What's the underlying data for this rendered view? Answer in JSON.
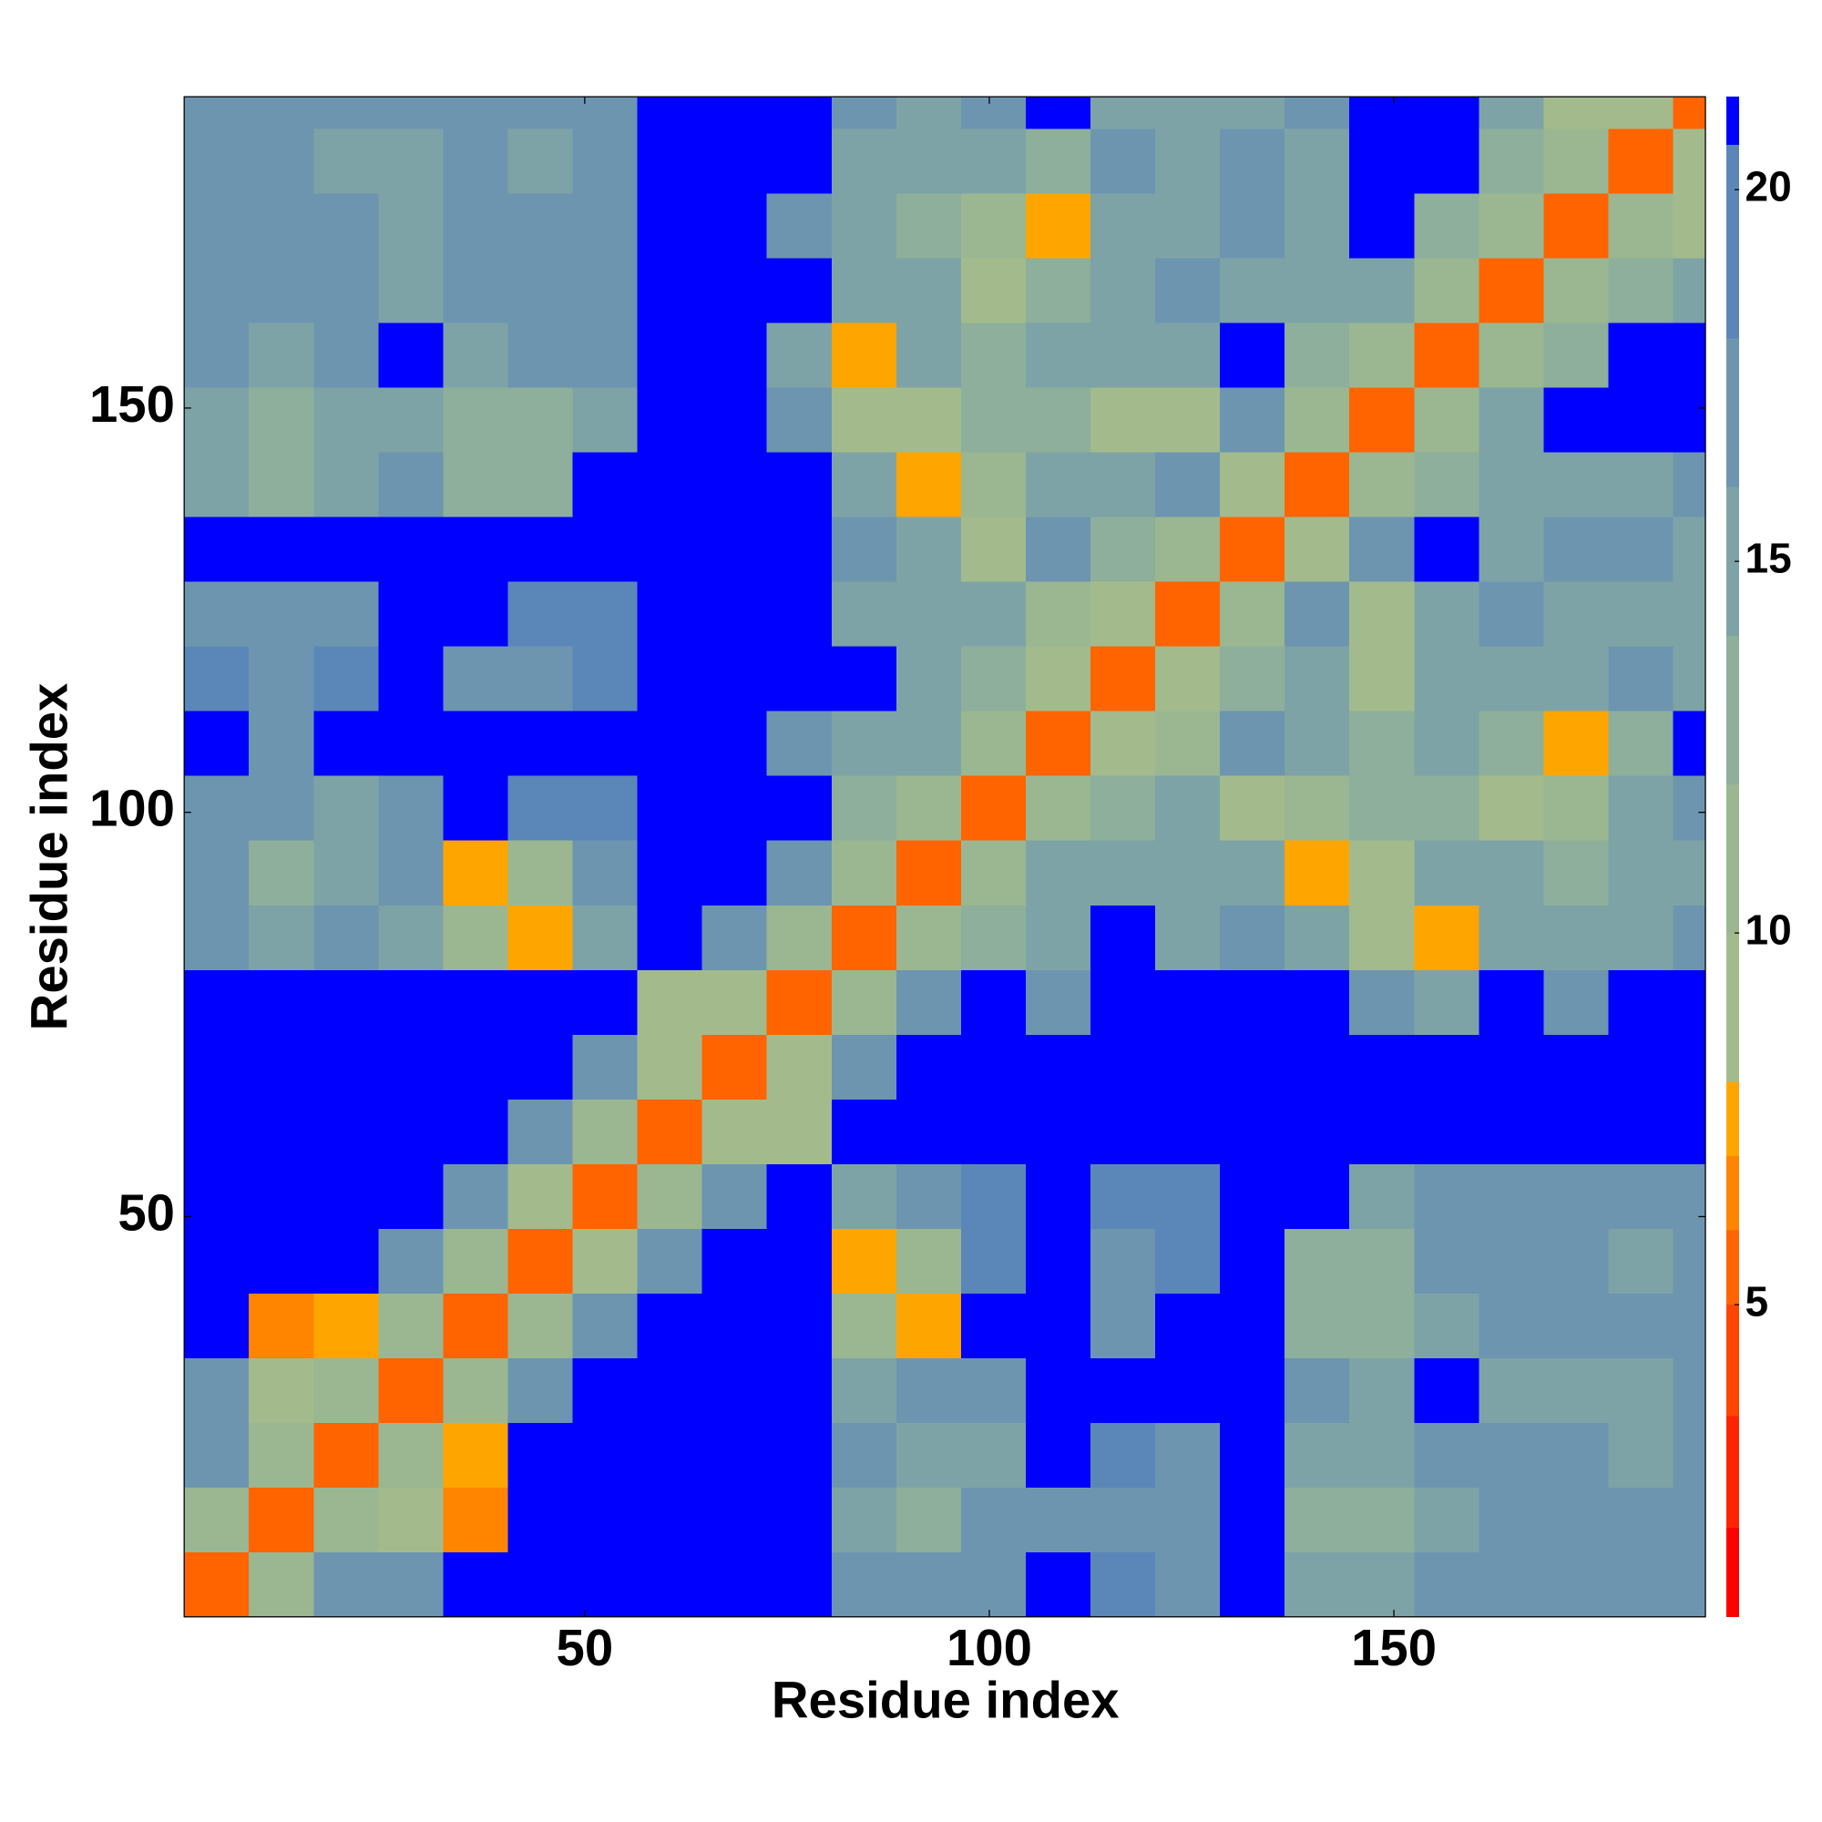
{
  "chart_data": {
    "type": "heatmap",
    "x_label": "Residue index",
    "y_label": "Residue index",
    "edges": [
      0.5,
      8.5,
      16.5,
      24.5,
      32.5,
      40.5,
      48.5,
      56.5,
      64.5,
      72.5,
      80.5,
      88.5,
      96.5,
      104.5,
      112.5,
      120.5,
      128.5,
      136.5,
      144.5,
      152.5,
      160.5,
      168.5,
      176.5,
      184.5,
      188.5
    ],
    "symmetric": true,
    "z": [
      [
        6,
        12,
        18,
        18,
        21,
        21,
        21,
        21,
        21,
        21,
        17,
        18,
        18,
        21,
        19,
        18,
        21,
        16,
        15,
        17,
        18,
        18,
        18,
        18
      ],
      [
        6,
        12,
        10,
        7,
        21,
        21,
        21,
        21,
        21,
        15,
        14,
        17,
        18,
        18,
        18,
        21,
        14,
        14,
        15,
        18,
        18,
        18,
        18
      ],
      [
        6,
        12,
        8,
        21,
        21,
        21,
        21,
        21,
        17,
        15,
        16,
        21,
        19,
        18,
        21,
        16,
        15,
        17,
        18,
        17,
        16,
        18
      ],
      [
        6,
        12,
        18,
        21,
        21,
        21,
        21,
        16,
        18,
        17,
        21,
        21,
        21,
        21,
        17,
        16,
        21,
        16,
        16,
        15,
        18
      ],
      [
        6,
        12,
        18,
        21,
        21,
        21,
        12,
        8,
        21,
        21,
        18,
        21,
        21,
        14,
        13,
        16,
        17,
        17,
        18,
        18
      ],
      [
        6,
        10,
        18,
        21,
        21,
        8,
        12,
        19,
        21,
        18,
        19,
        21,
        13,
        14,
        17,
        18,
        18,
        16,
        18
      ],
      [
        6,
        12,
        18,
        21,
        15,
        17,
        19,
        21,
        19,
        19,
        21,
        21,
        16,
        18,
        18,
        18,
        17,
        18
      ],
      [
        6,
        9,
        9,
        21,
        21,
        21,
        21,
        21,
        21,
        21,
        21,
        21,
        21,
        21,
        21,
        21,
        21
      ],
      [
        6,
        10,
        18,
        21,
        21,
        21,
        21,
        21,
        21,
        21,
        21,
        21,
        21,
        21,
        21,
        21
      ],
      [
        6,
        12,
        18,
        21,
        17,
        21,
        21,
        21,
        21,
        17,
        16,
        21,
        17,
        21,
        21
      ],
      [
        6,
        12,
        14,
        16,
        21,
        16,
        17,
        16,
        10,
        8,
        16,
        15,
        16,
        17
      ],
      [
        6,
        12,
        15,
        16,
        16,
        15,
        8,
        10,
        15,
        15,
        14,
        16,
        16
      ],
      [
        6,
        12,
        14,
        15,
        9,
        12,
        14,
        14,
        9,
        12,
        16,
        18
      ],
      [
        6,
        9,
        11,
        17,
        15,
        14,
        15,
        13,
        8,
        13,
        21
      ],
      [
        6,
        10,
        14,
        15,
        9,
        16,
        15,
        16,
        17,
        16
      ],
      [
        6,
        12,
        18,
        9,
        15,
        17,
        16,
        16,
        16
      ],
      [
        6,
        10,
        18,
        21,
        16,
        18,
        17,
        15
      ],
      [
        6,
        12,
        14,
        16,
        16,
        15,
        17
      ],
      [
        6,
        12,
        15,
        21,
        21,
        21
      ],
      [
        6,
        12,
        14,
        21,
        21
      ],
      [
        6,
        12,
        14,
        16
      ],
      [
        6,
        12,
        9
      ],
      [
        6,
        10
      ],
      [
        6
      ]
    ],
    "xlim": [
      0.5,
      188.5
    ],
    "ylim": [
      0.5,
      188.5
    ],
    "xticks": [
      50,
      100,
      150
    ],
    "yticks": [
      50,
      100,
      150
    ],
    "zlim": [
      0.8,
      21.25
    ],
    "zticks": [
      5,
      10,
      15,
      20
    ],
    "colorscale": [
      [
        2,
        "#ff0000"
      ],
      [
        3.5,
        "#ff2400"
      ],
      [
        5,
        "#ff4500"
      ],
      [
        6,
        "#ff6400"
      ],
      [
        7,
        "#ff8400"
      ],
      [
        8,
        "#ffa500"
      ],
      [
        10,
        "#a3bb8c"
      ],
      [
        12,
        "#9ab792"
      ],
      [
        14,
        "#8daf9b"
      ],
      [
        16,
        "#7ea3a6"
      ],
      [
        18,
        "#6d95b0"
      ],
      [
        20.6,
        "#5b87b8"
      ],
      [
        21.25,
        "#0000ff"
      ]
    ]
  }
}
